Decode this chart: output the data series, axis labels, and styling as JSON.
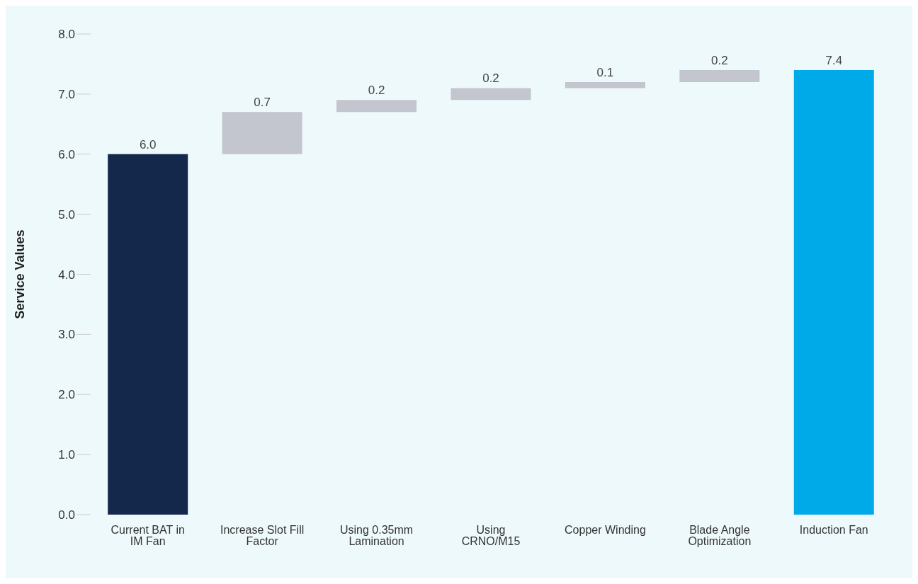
{
  "chart_data": {
    "type": "bar",
    "ylabel": "Service Values",
    "categories": [
      "Current BAT in IM Fan",
      "Increase Slot Fill Factor",
      "Using 0.35mm Lamination",
      "Using CRNO/M15",
      "Copper Winding",
      "Blade Angle Optimization",
      "Induction Fan"
    ],
    "values": [
      6.0,
      0.7,
      0.2,
      0.2,
      0.1,
      0.2,
      7.4
    ],
    "base": [
      0,
      6.0,
      6.7,
      6.9,
      7.1,
      7.2,
      0
    ],
    "colors": [
      "#14284b",
      "#c3c5cf",
      "#c3c5cf",
      "#c3c5cf",
      "#c3c5cf",
      "#c3c5cf",
      "#00a9e8"
    ],
    "ylim": [
      0,
      8
    ],
    "yticks": [
      {
        "value": 0,
        "label": "0.0"
      },
      {
        "value": 1,
        "label": "1.0"
      },
      {
        "value": 2,
        "label": "2.0"
      },
      {
        "value": 3,
        "label": "3.0"
      },
      {
        "value": 4,
        "label": "4.0"
      },
      {
        "value": 5,
        "label": "5.0"
      },
      {
        "value": 6,
        "label": "6.0"
      },
      {
        "value": 7,
        "label": "7.0"
      },
      {
        "value": 8,
        "label": "8.0"
      }
    ],
    "value_labels": [
      "6.0",
      "0.7",
      "0.2",
      "0.2",
      "0.1",
      "0.2",
      "7.4"
    ],
    "grid": false,
    "legend": false
  }
}
